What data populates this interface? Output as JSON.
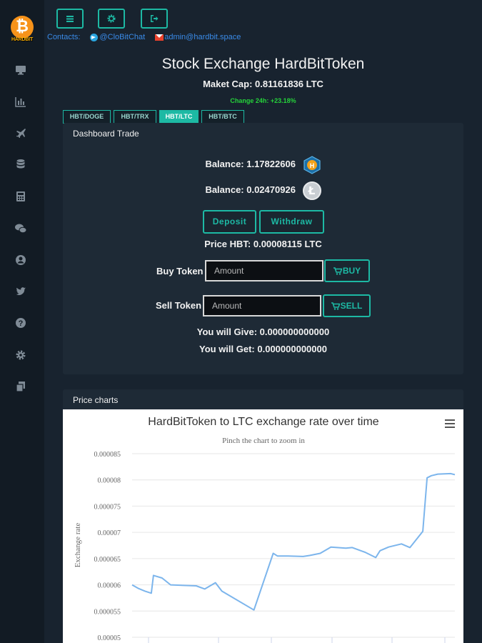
{
  "sidebar": {
    "logo_text": "HARDBIT",
    "logo_symbol": "₿",
    "icons": [
      "desktop-icon",
      "bar-chart-icon",
      "plane-icon",
      "database-icon",
      "calculator-icon",
      "wechat-icon",
      "user-circle-icon",
      "twitter-icon",
      "question-icon",
      "gear-icon",
      "copy-icon"
    ]
  },
  "toolbar": {
    "buttons": [
      "menu-icon",
      "cog-icon",
      "sign-out-icon"
    ],
    "contacts_label": "Contacts:",
    "telegram": "@CloBitChat",
    "email": "admin@hardbit.space"
  },
  "header": {
    "title": "Stock Exchange HardBitToken",
    "market_cap": "Maket Cap: 0.81161836 LTC",
    "change": "Change 24h: +23.18%"
  },
  "tabs": [
    {
      "label": "HBT/DOGE",
      "active": false
    },
    {
      "label": "HBT/TRX",
      "active": false
    },
    {
      "label": "HBT/LTC",
      "active": true
    },
    {
      "label": "HBT/BTC",
      "active": false
    }
  ],
  "dashboard": {
    "title": "Dashboard Trade",
    "balance_hbt": "Balance: 1.17822606",
    "balance_ltc": "Balance: 0.02470926",
    "deposit_label": "Deposit",
    "withdraw_label": "Withdraw",
    "price": "Price HBT: 0.00008115 LTC",
    "buy_label": "Buy Token",
    "buy_placeholder": "Amount",
    "buy_button": "BUY",
    "sell_label": "Sell Token",
    "sell_placeholder": "Amount",
    "sell_button": "SELL",
    "give": "You will Give: 0.000000000000",
    "get": "You will Get: 0.000000000000"
  },
  "charts_panel": {
    "title": "Price charts"
  },
  "chart_data": {
    "type": "line",
    "title": "HardBitToken to LTC exchange rate over time",
    "subtitle": "Pinch the chart to zoom in",
    "ylabel": "Exchange rate",
    "xlabel": "",
    "ylim": [
      5e-05,
      8.5e-05
    ],
    "yticks": [
      "0.00005",
      "0.000055",
      "0.00006",
      "0.000065",
      "0.00007",
      "0.000075",
      "0.00008",
      "0.000085"
    ],
    "grid": true,
    "color": "#7cb5ec",
    "series": [
      {
        "values": [
          6e-05,
          5.93e-05,
          5.88e-05,
          5.84e-05,
          6.18e-05,
          6.13e-05,
          6e-05,
          5.98e-05,
          5.92e-05,
          6.04e-05,
          5.88e-05,
          5.52e-05,
          6.6e-05,
          6.55e-05,
          6.55e-05,
          6.54e-05,
          6.56e-05,
          6.6e-05,
          6.72e-05,
          6.7e-05,
          6.71e-05,
          6.62e-05,
          6.52e-05,
          6.65e-05,
          6.72e-05,
          6.78e-05,
          6.71e-05,
          7.02e-05,
          8.04e-05,
          8.08e-05,
          8.11e-05,
          8.12e-05,
          8.1e-05
        ],
        "x": [
          0,
          3,
          6,
          9,
          10,
          14,
          18,
          30,
          34,
          39,
          42,
          57,
          66,
          68,
          73,
          80,
          83,
          88,
          93,
          100,
          103,
          109,
          114,
          116,
          120,
          126,
          130,
          136,
          138,
          140,
          143,
          149,
          151
        ]
      }
    ]
  }
}
